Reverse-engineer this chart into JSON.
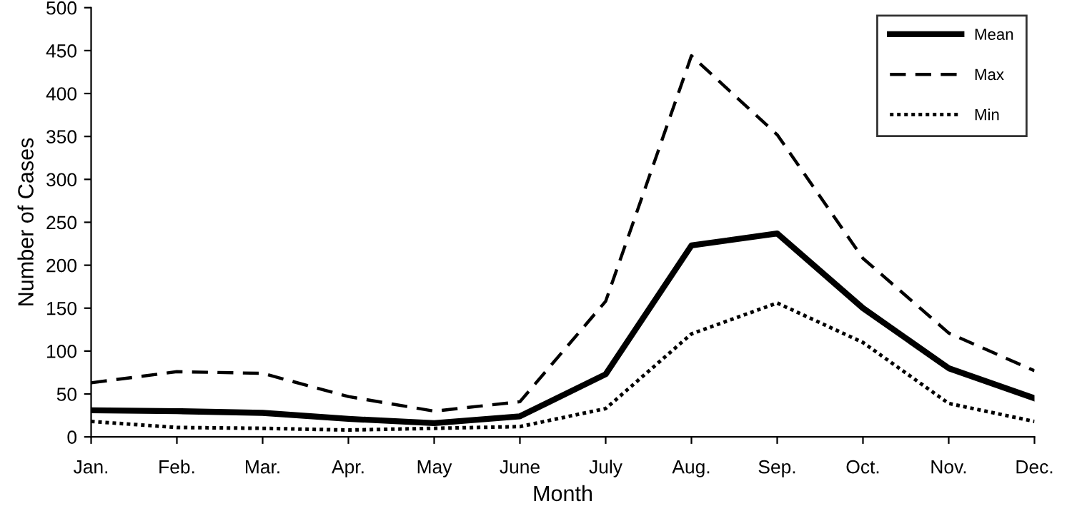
{
  "chart_data": {
    "type": "line",
    "xlabel": "Month",
    "ylabel": "Number of Cases",
    "categories": [
      "Jan.",
      "Feb.",
      "Mar.",
      "Apr.",
      "May",
      "June",
      "July",
      "Aug.",
      "Sep.",
      "Oct.",
      "Nov.",
      "Dec."
    ],
    "series": [
      {
        "name": "Mean",
        "color": "#000000",
        "line_style": "solid",
        "values": [
          31,
          30,
          28,
          21,
          16,
          24,
          73,
          223,
          237,
          150,
          80,
          45
        ]
      },
      {
        "name": "Max",
        "color": "#000000",
        "line_style": "dashed",
        "values": [
          63,
          76,
          74,
          47,
          30,
          41,
          158,
          444,
          352,
          208,
          121,
          77
        ]
      },
      {
        "name": "Min",
        "color": "#000000",
        "line_style": "dotted",
        "values": [
          18,
          11,
          10,
          8,
          10,
          12,
          33,
          120,
          156,
          110,
          39,
          18
        ]
      }
    ],
    "ylim": [
      0,
      500
    ],
    "yticks": [
      0,
      50,
      100,
      150,
      200,
      250,
      300,
      350,
      400,
      450,
      500
    ],
    "grid": false,
    "legend": "top right",
    "marker": "none"
  }
}
